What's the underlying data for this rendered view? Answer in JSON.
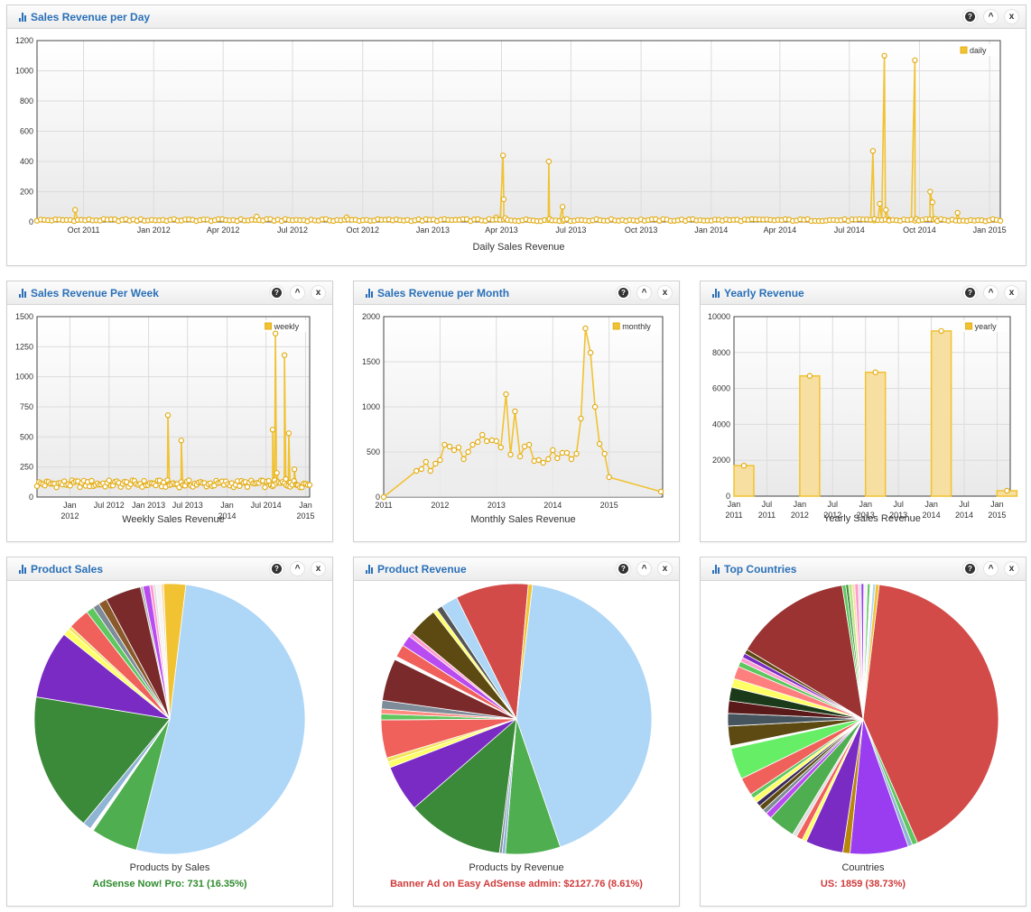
{
  "widgets": {
    "daily": {
      "title": "Sales Revenue per Day"
    },
    "weekly": {
      "title": "Sales Revenue Per Week"
    },
    "monthly": {
      "title": "Sales Revenue per Month"
    },
    "yearly": {
      "title": "Yearly Revenue"
    },
    "product_sales": {
      "title": "Product Sales",
      "selected": "AdSense Now! Pro: 731 (16.35%)",
      "selected_color": "#2e8b2e"
    },
    "product_revenue": {
      "title": "Product Revenue",
      "selected": "Banner Ad on Easy AdSense admin: $2127.76 (8.61%)",
      "selected_color": "#d03a3a"
    },
    "top_countries": {
      "title": "Top Countries",
      "selected": "US: 1859 (38.73%)",
      "selected_color": "#d03a3a"
    }
  },
  "controls": {
    "help_icon": "help-icon",
    "collapse_icon": "chevron-up-icon",
    "close_icon": "close-icon",
    "help": "?",
    "collapse": "^",
    "close": "x"
  },
  "chart_data": [
    {
      "id": "daily",
      "type": "line",
      "xlabel": "Daily Sales Revenue",
      "legend": "daily",
      "legend_position": "top-right",
      "ylim": [
        0,
        1200
      ],
      "yticks": [
        0,
        200,
        400,
        600,
        800,
        1000,
        1200
      ],
      "xlim": [
        "2011-08-01",
        "2015-01-15"
      ],
      "xticks": [
        {
          "date": "2011-10-01",
          "label": "Oct 2011"
        },
        {
          "date": "2012-01-01",
          "label": "Jan 2012"
        },
        {
          "date": "2012-04-01",
          "label": "Apr 2012"
        },
        {
          "date": "2012-07-01",
          "label": "Jul 2012"
        },
        {
          "date": "2012-10-01",
          "label": "Oct 2012"
        },
        {
          "date": "2013-01-01",
          "label": "Jan 2013"
        },
        {
          "date": "2013-04-01",
          "label": "Apr 2013"
        },
        {
          "date": "2013-07-01",
          "label": "Jul 2013"
        },
        {
          "date": "2013-10-01",
          "label": "Oct 2013"
        },
        {
          "date": "2014-01-01",
          "label": "Jan 2014"
        },
        {
          "date": "2014-04-01",
          "label": "Apr 2014"
        },
        {
          "date": "2014-07-01",
          "label": "Jul 2014"
        },
        {
          "date": "2014-10-01",
          "label": "Oct 2014"
        },
        {
          "date": "2015-01-01",
          "label": "Jan 2015"
        }
      ],
      "baseline": 12,
      "points": [
        [
          "2011-09-20",
          80
        ],
        [
          "2012-05-15",
          35
        ],
        [
          "2012-09-10",
          30
        ],
        [
          "2013-03-25",
          30
        ],
        [
          "2013-04-03",
          440
        ],
        [
          "2013-04-04",
          150
        ],
        [
          "2013-04-06",
          25
        ],
        [
          "2013-06-02",
          400
        ],
        [
          "2013-06-03",
          20
        ],
        [
          "2013-06-20",
          100
        ],
        [
          "2013-06-22",
          15
        ],
        [
          "2014-08-01",
          470
        ],
        [
          "2014-08-03",
          20
        ],
        [
          "2014-08-10",
          120
        ],
        [
          "2014-08-16",
          1100
        ],
        [
          "2014-08-18",
          80
        ],
        [
          "2014-08-22",
          15
        ],
        [
          "2014-09-25",
          1070
        ],
        [
          "2014-09-27",
          20
        ],
        [
          "2014-10-15",
          200
        ],
        [
          "2014-10-18",
          130
        ],
        [
          "2014-10-22",
          20
        ],
        [
          "2014-11-20",
          60
        ]
      ]
    },
    {
      "id": "weekly",
      "type": "line",
      "xlabel": "Weekly Sales Revenue",
      "legend": "weekly",
      "legend_position": "top-right",
      "ylim": [
        0,
        1500
      ],
      "yticks": [
        0,
        250,
        500,
        750,
        1000,
        1250,
        1500
      ],
      "xlim": [
        "2011-08-01",
        "2015-01-20"
      ],
      "xticks": [
        {
          "date": "2012-01-01",
          "label": "Jan\n2012"
        },
        {
          "date": "2012-07-01",
          "label": "Jul 2012"
        },
        {
          "date": "2013-01-01",
          "label": "Jan 2013"
        },
        {
          "date": "2013-07-01",
          "label": "Jul 2013"
        },
        {
          "date": "2014-01-01",
          "label": "Jan\n2014"
        },
        {
          "date": "2014-07-01",
          "label": "Jul 2014"
        },
        {
          "date": "2015-01-01",
          "label": "Jan\n2015"
        }
      ],
      "baseline": 110,
      "points": [
        [
          "2013-04-01",
          680
        ],
        [
          "2013-04-08",
          100
        ],
        [
          "2013-06-02",
          470
        ],
        [
          "2013-06-09",
          100
        ],
        [
          "2014-08-01",
          560
        ],
        [
          "2014-08-05",
          100
        ],
        [
          "2014-08-14",
          1360
        ],
        [
          "2014-08-20",
          200
        ],
        [
          "2014-09-25",
          1180
        ],
        [
          "2014-10-01",
          150
        ],
        [
          "2014-10-15",
          530
        ],
        [
          "2014-10-22",
          120
        ],
        [
          "2014-11-10",
          230
        ],
        [
          "2014-11-20",
          100
        ]
      ]
    },
    {
      "id": "monthly",
      "type": "line",
      "xlabel": "Monthly Sales Revenue",
      "legend": "monthly",
      "legend_position": "top-right",
      "ylim": [
        0,
        2000
      ],
      "yticks": [
        0,
        500,
        1000,
        1500,
        2000
      ],
      "xlim": [
        2011.0,
        2015.95
      ],
      "xticks": [
        {
          "x": 2011,
          "label": "2011"
        },
        {
          "x": 2012,
          "label": "2012"
        },
        {
          "x": 2013,
          "label": "2013"
        },
        {
          "x": 2014,
          "label": "2014"
        },
        {
          "x": 2015,
          "label": "2015"
        }
      ],
      "points": [
        [
          2011.0,
          0
        ],
        [
          2011.58,
          290
        ],
        [
          2011.67,
          310
        ],
        [
          2011.75,
          390
        ],
        [
          2011.83,
          290
        ],
        [
          2011.92,
          370
        ],
        [
          2012.0,
          410
        ],
        [
          2012.08,
          580
        ],
        [
          2012.17,
          560
        ],
        [
          2012.25,
          520
        ],
        [
          2012.33,
          550
        ],
        [
          2012.42,
          420
        ],
        [
          2012.5,
          500
        ],
        [
          2012.58,
          580
        ],
        [
          2012.67,
          610
        ],
        [
          2012.75,
          690
        ],
        [
          2012.83,
          620
        ],
        [
          2012.92,
          630
        ],
        [
          2013.0,
          620
        ],
        [
          2013.08,
          550
        ],
        [
          2013.17,
          1140
        ],
        [
          2013.25,
          470
        ],
        [
          2013.33,
          950
        ],
        [
          2013.42,
          450
        ],
        [
          2013.5,
          560
        ],
        [
          2013.58,
          580
        ],
        [
          2013.67,
          400
        ],
        [
          2013.75,
          410
        ],
        [
          2013.83,
          380
        ],
        [
          2013.92,
          420
        ],
        [
          2014.0,
          520
        ],
        [
          2014.08,
          430
        ],
        [
          2014.17,
          490
        ],
        [
          2014.25,
          490
        ],
        [
          2014.33,
          420
        ],
        [
          2014.42,
          480
        ],
        [
          2014.5,
          870
        ],
        [
          2014.58,
          1870
        ],
        [
          2014.67,
          1600
        ],
        [
          2014.75,
          1000
        ],
        [
          2014.83,
          590
        ],
        [
          2014.92,
          480
        ],
        [
          2015.0,
          220
        ],
        [
          2015.92,
          60
        ]
      ]
    },
    {
      "id": "yearly",
      "type": "bar",
      "xlabel": "Yearly Sales Revenue",
      "legend": "yearly",
      "legend_position": "top-right",
      "ylim": [
        0,
        10000
      ],
      "yticks": [
        0,
        2000,
        4000,
        6000,
        8000,
        10000
      ],
      "xlim": [
        2011.0,
        2015.2
      ],
      "xticks": [
        {
          "x": 2011.0,
          "label": "Jan\n2011"
        },
        {
          "x": 2011.5,
          "label": "Jul\n2011"
        },
        {
          "x": 2012.0,
          "label": "Jan\n2012"
        },
        {
          "x": 2012.5,
          "label": "Jul\n2012"
        },
        {
          "x": 2013.0,
          "label": "Jan\n2013"
        },
        {
          "x": 2013.5,
          "label": "Jul\n2013"
        },
        {
          "x": 2014.0,
          "label": "Jan\n2014"
        },
        {
          "x": 2014.5,
          "label": "Jul\n2014"
        },
        {
          "x": 2015.0,
          "label": "Jan\n2015"
        }
      ],
      "bars": [
        {
          "x": 2011.0,
          "value": 1700
        },
        {
          "x": 2012.0,
          "value": 6700
        },
        {
          "x": 2013.0,
          "value": 6900
        },
        {
          "x": 2014.0,
          "value": 9200
        },
        {
          "x": 2015.0,
          "value": 300
        }
      ]
    },
    {
      "id": "product_sales",
      "type": "pie",
      "xlabel": "Products by Sales",
      "slices": [
        {
          "value": 51.2,
          "color": "#aed6f7"
        },
        {
          "value": 5.5,
          "color": "#4fae4f"
        },
        {
          "value": 0.4,
          "color": "#ffffff"
        },
        {
          "value": 1.0,
          "color": "#8fb4d4"
        },
        {
          "value": 16.35,
          "color": "#3a8a3a"
        },
        {
          "value": 8.0,
          "color": "#7a2bc4"
        },
        {
          "value": 0.8,
          "color": "#ffff66"
        },
        {
          "value": 0.4,
          "color": "#f2e45c"
        },
        {
          "value": 2.5,
          "color": "#f0615b"
        },
        {
          "value": 0.9,
          "color": "#5ec75e"
        },
        {
          "value": 0.8,
          "color": "#7e8c99"
        },
        {
          "value": 1.0,
          "color": "#8b5a2b"
        },
        {
          "value": 4.2,
          "color": "#7a2a2a"
        },
        {
          "value": 0.3,
          "color": "#b0b0b0"
        },
        {
          "value": 0.8,
          "color": "#b84cf0"
        },
        {
          "value": 0.4,
          "color": "#ff9ccf"
        },
        {
          "value": 0.3,
          "color": "#e0e0e0"
        },
        {
          "value": 0.6,
          "color": "#f5f5f5"
        },
        {
          "value": 0.3,
          "color": "#ffd8a0"
        },
        {
          "value": 2.6,
          "color": "#f1c232"
        }
      ]
    },
    {
      "id": "product_revenue",
      "type": "pie",
      "xlabel": "Products by Revenue",
      "slices": [
        {
          "value": 42.5,
          "color": "#aed6f7"
        },
        {
          "value": 6.5,
          "color": "#4fae4f"
        },
        {
          "value": 0.4,
          "color": "#8fb4d4"
        },
        {
          "value": 0.3,
          "color": "#7e8c99"
        },
        {
          "value": 11.5,
          "color": "#3a8a3a"
        },
        {
          "value": 5.5,
          "color": "#7a2bc4"
        },
        {
          "value": 0.7,
          "color": "#ffff66"
        },
        {
          "value": 0.5,
          "color": "#f2e45c"
        },
        {
          "value": 4.5,
          "color": "#f0615b"
        },
        {
          "value": 0.7,
          "color": "#5ec75e"
        },
        {
          "value": 0.6,
          "color": "#ff8a80"
        },
        {
          "value": 1.0,
          "color": "#7e8c99"
        },
        {
          "value": 5.0,
          "color": "#7a2a2a"
        },
        {
          "value": 0.4,
          "color": "#ffffff"
        },
        {
          "value": 1.5,
          "color": "#f0615b"
        },
        {
          "value": 1.3,
          "color": "#b84cf0"
        },
        {
          "value": 0.5,
          "color": "#ff9ccf"
        },
        {
          "value": 3.5,
          "color": "#5c4a12"
        },
        {
          "value": 0.5,
          "color": "#ffff66"
        },
        {
          "value": 0.7,
          "color": "#555555"
        },
        {
          "value": 2.0,
          "color": "#aed6f7"
        },
        {
          "value": 8.61,
          "color": "#d24b48"
        },
        {
          "value": 0.5,
          "color": "#f1c232"
        }
      ]
    },
    {
      "id": "top_countries",
      "type": "pie",
      "xlabel": "Countries",
      "slices": [
        {
          "value": 38.73,
          "color": "#d24b48"
        },
        {
          "value": 0.6,
          "color": "#5ec75e"
        },
        {
          "value": 0.5,
          "color": "#8fb4d4"
        },
        {
          "value": 6.5,
          "color": "#9a3df0"
        },
        {
          "value": 0.8,
          "color": "#b8860b"
        },
        {
          "value": 4.2,
          "color": "#7a2bc4"
        },
        {
          "value": 0.5,
          "color": "#ffff66"
        },
        {
          "value": 0.7,
          "color": "#f0615b"
        },
        {
          "value": 0.5,
          "color": "#e0e0e0"
        },
        {
          "value": 3.0,
          "color": "#4fae4f"
        },
        {
          "value": 0.7,
          "color": "#b84cf0"
        },
        {
          "value": 0.5,
          "color": "#7e8c99"
        },
        {
          "value": 0.6,
          "color": "#5c4a12"
        },
        {
          "value": 0.5,
          "color": "#3a2a5a"
        },
        {
          "value": 0.6,
          "color": "#ffff66"
        },
        {
          "value": 0.5,
          "color": "#5ec75e"
        },
        {
          "value": 2.0,
          "color": "#f0615b"
        },
        {
          "value": 3.5,
          "color": "#66ee66"
        },
        {
          "value": 0.3,
          "color": "#ffffff"
        },
        {
          "value": 2.2,
          "color": "#5c4a12"
        },
        {
          "value": 1.4,
          "color": "#46545e"
        },
        {
          "value": 1.4,
          "color": "#5a1a1a"
        },
        {
          "value": 1.5,
          "color": "#1a3a1a"
        },
        {
          "value": 1.0,
          "color": "#ffff66"
        },
        {
          "value": 1.4,
          "color": "#ff7f7f"
        },
        {
          "value": 0.6,
          "color": "#5ec75e"
        },
        {
          "value": 0.5,
          "color": "#ff9ccf"
        },
        {
          "value": 0.5,
          "color": "#7a2bc4"
        },
        {
          "value": 0.5,
          "color": "#5c4a12"
        },
        {
          "value": 13.0,
          "color": "#9b3333"
        },
        {
          "value": 0.4,
          "color": "#5ec75e"
        },
        {
          "value": 0.3,
          "color": "#3a8a3a"
        },
        {
          "value": 0.4,
          "color": "#b8e986"
        },
        {
          "value": 0.3,
          "color": "#ffd8a0"
        },
        {
          "value": 0.4,
          "color": "#ff9ccf"
        },
        {
          "value": 0.3,
          "color": "#e0e0e0"
        },
        {
          "value": 0.3,
          "color": "#9a3df0"
        },
        {
          "value": 0.4,
          "color": "#f5f5f5"
        },
        {
          "value": 0.3,
          "color": "#5ec75e"
        },
        {
          "value": 0.3,
          "color": "#ffffff"
        },
        {
          "value": 0.3,
          "color": "#aed6f7"
        },
        {
          "value": 0.4,
          "color": "#f1c232"
        }
      ]
    }
  ]
}
